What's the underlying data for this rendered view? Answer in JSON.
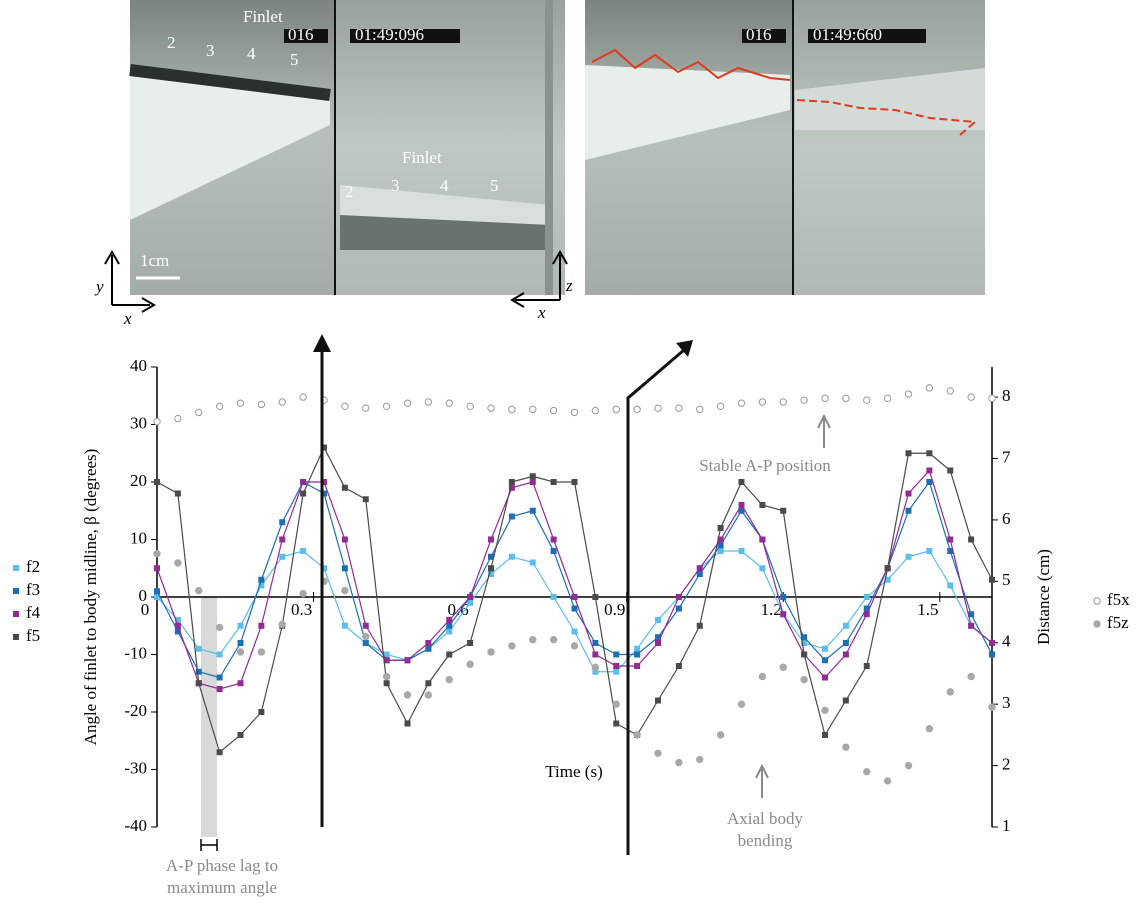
{
  "photos": {
    "left": {
      "finlet_top": "Finlet",
      "numbers_top": [
        "2",
        "3",
        "4",
        "5"
      ],
      "counter": "016",
      "timestamp": "01:49:096",
      "finlet_bottom": "Finlet",
      "numbers_bottom": [
        "2",
        "3",
        "4",
        "5"
      ],
      "scale": "1cm",
      "axes": [
        "y",
        "x",
        "z",
        "x"
      ]
    },
    "right": {
      "counter": "016",
      "timestamp": "01:49:660"
    }
  },
  "chart_data": {
    "type": "line",
    "xlabel": "Time (s)",
    "ylabel": "Angle of finlet to body midline, β (degrees)",
    "y2label": "Distance (cm)",
    "x": [
      0,
      0.04,
      0.08,
      0.12,
      0.16,
      0.2,
      0.24,
      0.28,
      0.32,
      0.36,
      0.4,
      0.44,
      0.48,
      0.52,
      0.56,
      0.6,
      0.64,
      0.68,
      0.72,
      0.76,
      0.8,
      0.84,
      0.88,
      0.92,
      0.96,
      1.0,
      1.04,
      1.08,
      1.12,
      1.16,
      1.2,
      1.24,
      1.28,
      1.32,
      1.36,
      1.4,
      1.44,
      1.48,
      1.52,
      1.56,
      1.6
    ],
    "xlim": [
      0,
      1.6
    ],
    "xticks": [
      0,
      0.3,
      0.6,
      0.9,
      1.2,
      1.5
    ],
    "ylim": [
      -40,
      40
    ],
    "yticks": [
      -40,
      -30,
      -20,
      -10,
      0,
      10,
      20,
      30,
      40
    ],
    "y2lim": [
      1,
      8.49
    ],
    "y2ticks": [
      1,
      2,
      3,
      4,
      5,
      6,
      7,
      8
    ],
    "series": [
      {
        "name": "f2",
        "color": "#5bbde9",
        "marker": "square",
        "values": [
          0,
          -4,
          -9,
          -10,
          -5,
          2,
          7,
          8,
          5,
          -5,
          -8,
          -10,
          -11,
          -9,
          -6,
          -1,
          4,
          7,
          6,
          0,
          -6,
          -13,
          -13,
          -9,
          -4,
          0,
          5,
          8,
          8,
          5,
          -3,
          -8,
          -9,
          -5,
          0,
          3,
          7,
          8,
          2,
          -5,
          -8
        ]
      },
      {
        "name": "f3",
        "color": "#1c6fb5",
        "marker": "square",
        "values": [
          1,
          -6,
          -13,
          -14,
          -8,
          3,
          13,
          20,
          18,
          5,
          -8,
          -11,
          -11,
          -9,
          -5,
          0,
          7,
          14,
          15,
          8,
          -2,
          -8,
          -10,
          -10,
          -7,
          -2,
          4,
          9,
          15,
          10,
          0,
          -7,
          -11,
          -8,
          -2,
          5,
          15,
          20,
          8,
          -3,
          -10
        ]
      },
      {
        "name": "f4",
        "color": "#932b94",
        "marker": "square",
        "values": [
          5,
          -5,
          -15,
          -16,
          -15,
          -5,
          10,
          20,
          20,
          10,
          -5,
          -11,
          -11,
          -8,
          -4,
          0,
          10,
          19,
          20,
          10,
          0,
          -10,
          -12,
          -12,
          -8,
          0,
          5,
          10,
          16,
          10,
          -3,
          -10,
          -14,
          -10,
          -3,
          5,
          18,
          22,
          10,
          -5,
          -8
        ]
      },
      {
        "name": "f5",
        "color": "#4a4a4a",
        "marker": "square",
        "values": [
          20,
          18,
          -15,
          -27,
          -24,
          -20,
          -5,
          18,
          26,
          19,
          17,
          -15,
          -22,
          -15,
          -10,
          -8,
          5,
          20,
          21,
          20,
          20,
          0,
          -22,
          -24,
          -18,
          -12,
          -5,
          12,
          20,
          16,
          15,
          -10,
          -24,
          -18,
          -12,
          5,
          25,
          25,
          22,
          10,
          3
        ]
      },
      {
        "name": "f5x",
        "color": "#999999",
        "marker": "open-circle",
        "axis": "y2",
        "values": [
          7.6,
          7.65,
          7.75,
          7.85,
          7.9,
          7.88,
          7.92,
          8.0,
          7.95,
          7.85,
          7.82,
          7.85,
          7.9,
          7.92,
          7.9,
          7.85,
          7.82,
          7.8,
          7.8,
          7.78,
          7.75,
          7.78,
          7.8,
          7.8,
          7.82,
          7.82,
          7.8,
          7.85,
          7.9,
          7.92,
          7.92,
          7.95,
          7.98,
          7.98,
          7.95,
          7.98,
          8.05,
          8.15,
          8.1,
          8.0,
          7.98
        ]
      },
      {
        "name": "f5z",
        "color": "#a8a8a8",
        "marker": "circle",
        "axis": "y2",
        "values": [
          5.45,
          5.3,
          4.85,
          4.25,
          3.85,
          3.85,
          4.3,
          4.8,
          5.0,
          4.85,
          4.1,
          3.45,
          3.15,
          3.15,
          3.4,
          3.65,
          3.85,
          3.95,
          4.05,
          4.05,
          3.95,
          3.6,
          3.0,
          2.5,
          2.2,
          2.05,
          2.1,
          2.5,
          3.0,
          3.45,
          3.6,
          3.4,
          2.9,
          2.3,
          1.9,
          1.75,
          2.0,
          2.6,
          3.2,
          3.45,
          2.95
        ]
      }
    ],
    "annotations": [
      "Stable A-P position",
      "Axial body bending",
      "A-P phase lag to maximum angle"
    ]
  }
}
